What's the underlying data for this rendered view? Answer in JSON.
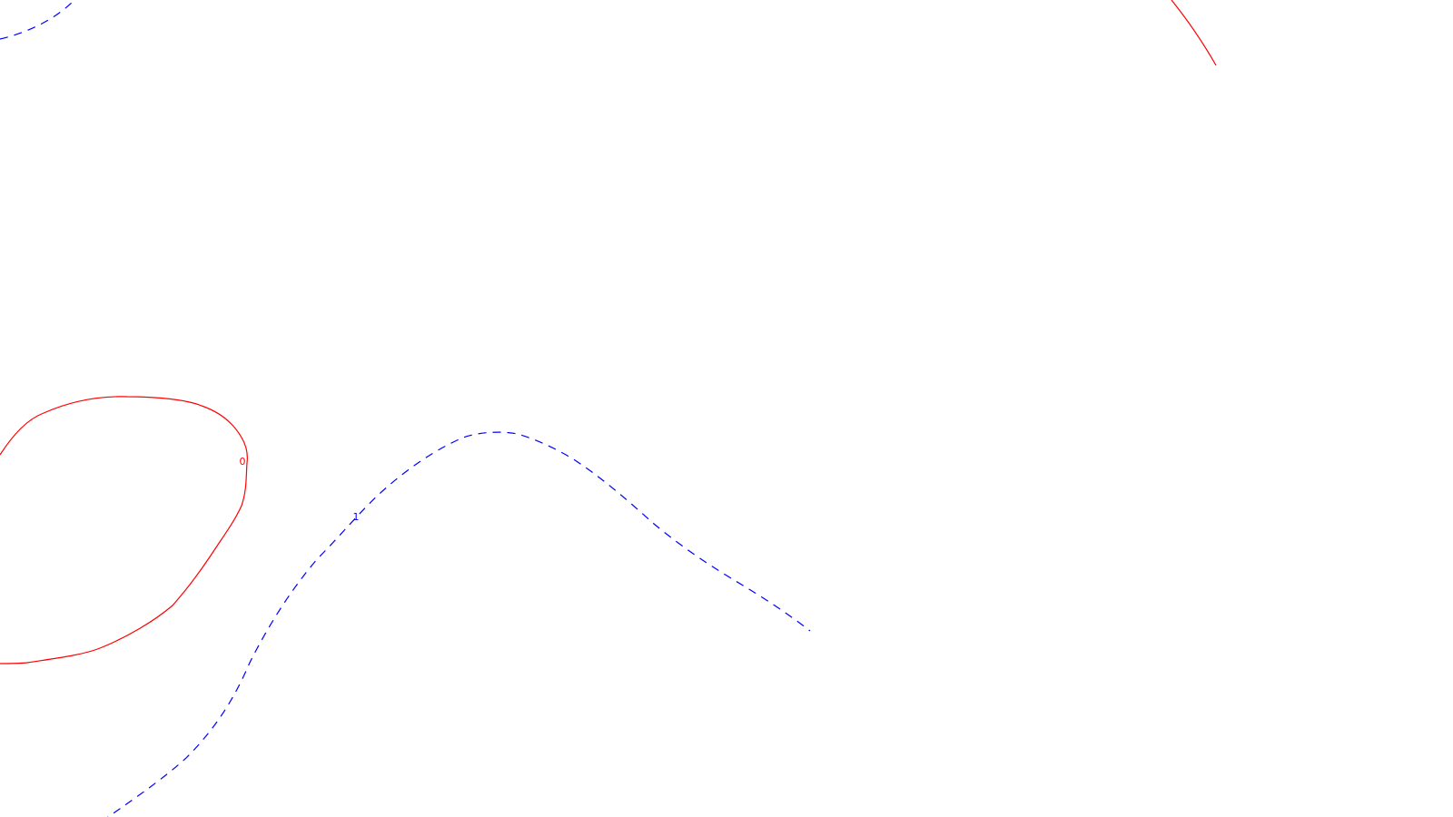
{
  "background_color": "#ffffff",
  "contours": [
    {
      "id": "contour-0",
      "label": "0",
      "color": "#ff0000",
      "style": "solid"
    },
    {
      "id": "contour-1",
      "label": "1",
      "color": "#0000ff",
      "style": "dashed"
    }
  ]
}
